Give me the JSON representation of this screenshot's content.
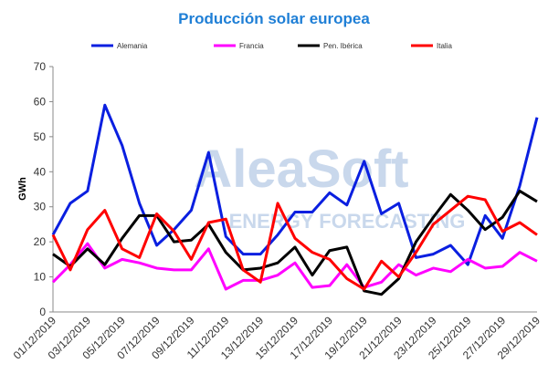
{
  "chart_data": {
    "type": "line",
    "title": "Producción solar europea",
    "y_label": "GWh",
    "watermark": [
      "AleaSoft",
      "ENERGY FORECASTING"
    ],
    "categories": [
      "01/12/2019",
      null,
      "03/12/2019",
      null,
      "05/12/2019",
      null,
      "07/12/2019",
      null,
      "09/12/2019",
      null,
      "11/12/2019",
      null,
      "13/12/2019",
      null,
      "15/12/2019",
      null,
      "17/12/2019",
      null,
      "19/12/2019",
      null,
      "21/12/2019",
      null,
      "23/12/2019",
      null,
      "25/12/2019",
      null,
      "27/12/2019",
      null,
      "29/12/2019"
    ],
    "series": [
      {
        "name": "Alemania",
        "color": "#0a1fe0",
        "values": [
          22,
          31,
          34.5,
          59,
          47.5,
          31,
          19,
          23.5,
          29,
          45.5,
          21.5,
          16.5,
          16.5,
          22,
          28.5,
          28.5,
          34,
          30.5,
          43,
          28,
          31,
          15.5,
          16.5,
          19,
          13.5,
          27.5,
          21,
          36,
          55.5
        ]
      },
      {
        "name": "Francia",
        "color": "#ff00ff",
        "values": [
          8.5,
          13.5,
          19.5,
          12.5,
          15,
          14,
          12.5,
          12,
          12,
          18,
          6.5,
          9,
          9,
          10.5,
          14,
          7,
          7.5,
          13.5,
          7,
          8.5,
          13.5,
          10.5,
          12.5,
          11.5,
          15,
          12.5,
          13,
          17,
          14.5
        ]
      },
      {
        "name": "Pen. Ibérica",
        "color": "#000000",
        "values": [
          16.5,
          13,
          18,
          13.5,
          21,
          27.5,
          27.5,
          20,
          20.5,
          25,
          17,
          12,
          12.5,
          14,
          18.5,
          10.5,
          17.5,
          18.5,
          6,
          5,
          9.5,
          20,
          27,
          33.5,
          29,
          23.5,
          27,
          34.5,
          31.5
        ]
      },
      {
        "name": "Italia",
        "color": "#ff0000",
        "values": [
          22,
          12,
          23.5,
          29,
          18,
          15.5,
          28,
          23,
          15,
          25.5,
          26.5,
          12,
          8.5,
          31,
          21,
          17,
          15,
          9.5,
          6.5,
          14.5,
          10,
          17,
          25,
          29,
          33,
          32,
          23,
          25.5,
          22
        ]
      }
    ],
    "ylim": [
      0,
      70
    ],
    "yticks": [
      0,
      10,
      20,
      30,
      40,
      50,
      60,
      70
    ],
    "grid": false,
    "legend": "top"
  }
}
